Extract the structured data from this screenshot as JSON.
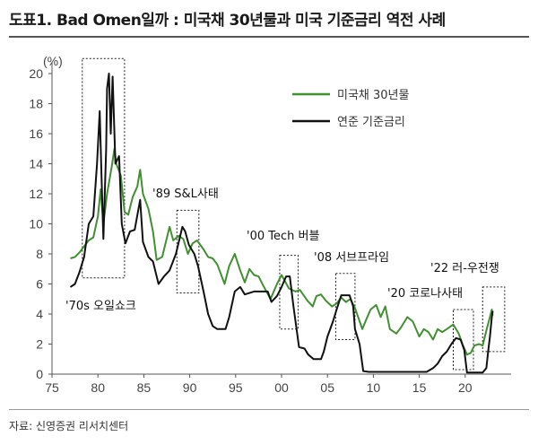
{
  "figure": {
    "title": "도표1. Bad Omen일까 : 미국채 30년물과 미국 기준금리 역전 사례",
    "source": "자료: 신영증권 리서치센터"
  },
  "chart_data": {
    "type": "line",
    "title": "도표1. Bad Omen일까 : 미국채 30년물과 미국 기준금리 역전 사례",
    "xlabel": "",
    "ylabel": "(%)",
    "y_unit": "(%)",
    "xlim": [
      1975,
      2025
    ],
    "ylim": [
      0,
      20
    ],
    "x_ticks": [
      {
        "v": 1975,
        "label": "75"
      },
      {
        "v": 1980,
        "label": "80"
      },
      {
        "v": 1985,
        "label": "85"
      },
      {
        "v": 1990,
        "label": "90"
      },
      {
        "v": 1995,
        "label": "95"
      },
      {
        "v": 2000,
        "label": "00"
      },
      {
        "v": 2005,
        "label": "05"
      },
      {
        "v": 2010,
        "label": "10"
      },
      {
        "v": 2015,
        "label": "15"
      },
      {
        "v": 2020,
        "label": "20"
      }
    ],
    "y_ticks": [
      0,
      2,
      4,
      6,
      8,
      10,
      12,
      14,
      16,
      18,
      20
    ],
    "grid": false,
    "legend_position": "top-right",
    "series": [
      {
        "name": "미국채 30년물",
        "color": "#3f9130",
        "points": [
          [
            1977.0,
            7.7
          ],
          [
            1977.5,
            7.8
          ],
          [
            1978.0,
            8.1
          ],
          [
            1978.5,
            8.5
          ],
          [
            1979.0,
            8.9
          ],
          [
            1979.5,
            9.1
          ],
          [
            1980.0,
            10.5
          ],
          [
            1980.3,
            12.3
          ],
          [
            1980.6,
            10.0
          ],
          [
            1981.0,
            12.0
          ],
          [
            1981.5,
            13.8
          ],
          [
            1981.8,
            15.0
          ],
          [
            1982.0,
            14.0
          ],
          [
            1982.5,
            13.2
          ],
          [
            1982.9,
            10.8
          ],
          [
            1983.3,
            10.6
          ],
          [
            1983.8,
            11.8
          ],
          [
            1984.3,
            12.5
          ],
          [
            1984.6,
            13.6
          ],
          [
            1984.9,
            12.0
          ],
          [
            1985.5,
            11.0
          ],
          [
            1986.0,
            9.5
          ],
          [
            1986.4,
            7.6
          ],
          [
            1987.0,
            7.8
          ],
          [
            1987.8,
            9.8
          ],
          [
            1988.2,
            8.9
          ],
          [
            1988.8,
            9.2
          ],
          [
            1989.3,
            9.0
          ],
          [
            1989.8,
            8.0
          ],
          [
            1990.3,
            8.7
          ],
          [
            1990.8,
            8.9
          ],
          [
            1991.5,
            8.3
          ],
          [
            1992.0,
            7.8
          ],
          [
            1992.5,
            7.7
          ],
          [
            1993.0,
            7.3
          ],
          [
            1993.8,
            6.0
          ],
          [
            1994.3,
            7.2
          ],
          [
            1994.9,
            8.0
          ],
          [
            1995.5,
            6.9
          ],
          [
            1996.0,
            6.1
          ],
          [
            1996.5,
            7.0
          ],
          [
            1997.0,
            6.6
          ],
          [
            1997.5,
            6.5
          ],
          [
            1998.0,
            5.9
          ],
          [
            1998.8,
            5.0
          ],
          [
            1999.5,
            6.0
          ],
          [
            2000.0,
            6.6
          ],
          [
            2000.8,
            5.7
          ],
          [
            2001.5,
            5.5
          ],
          [
            2002.0,
            5.6
          ],
          [
            2002.8,
            4.9
          ],
          [
            2003.4,
            4.5
          ],
          [
            2003.8,
            5.2
          ],
          [
            2004.3,
            5.3
          ],
          [
            2004.8,
            4.9
          ],
          [
            2005.5,
            4.5
          ],
          [
            2006.0,
            4.7
          ],
          [
            2006.5,
            5.1
          ],
          [
            2007.0,
            4.8
          ],
          [
            2007.5,
            5.0
          ],
          [
            2008.0,
            4.4
          ],
          [
            2008.8,
            3.0
          ],
          [
            2009.2,
            3.6
          ],
          [
            2009.7,
            4.3
          ],
          [
            2010.3,
            4.6
          ],
          [
            2010.8,
            3.8
          ],
          [
            2011.3,
            4.5
          ],
          [
            2011.8,
            3.0
          ],
          [
            2012.5,
            2.7
          ],
          [
            2013.0,
            3.1
          ],
          [
            2013.7,
            3.8
          ],
          [
            2014.3,
            3.5
          ],
          [
            2015.0,
            2.5
          ],
          [
            2015.5,
            3.0
          ],
          [
            2016.0,
            2.8
          ],
          [
            2016.5,
            2.3
          ],
          [
            2017.0,
            3.0
          ],
          [
            2017.5,
            2.8
          ],
          [
            2018.0,
            3.0
          ],
          [
            2018.7,
            3.3
          ],
          [
            2019.3,
            2.7
          ],
          [
            2019.7,
            2.0
          ],
          [
            2020.2,
            1.3
          ],
          [
            2020.6,
            1.4
          ],
          [
            2021.0,
            1.9
          ],
          [
            2021.5,
            2.0
          ],
          [
            2021.9,
            1.9
          ],
          [
            2022.3,
            2.9
          ],
          [
            2022.7,
            3.8
          ],
          [
            2022.9,
            4.3
          ],
          [
            2023.0,
            3.9
          ]
        ]
      },
      {
        "name": "연준 기준금리",
        "color": "#111111",
        "points": [
          [
            1977.0,
            5.8
          ],
          [
            1977.5,
            6.0
          ],
          [
            1978.0,
            6.8
          ],
          [
            1978.5,
            7.8
          ],
          [
            1979.0,
            10.0
          ],
          [
            1979.5,
            10.5
          ],
          [
            1979.9,
            14.0
          ],
          [
            1980.2,
            17.5
          ],
          [
            1980.4,
            13.0
          ],
          [
            1980.6,
            9.0
          ],
          [
            1980.9,
            15.0
          ],
          [
            1981.0,
            19.0
          ],
          [
            1981.2,
            20.0
          ],
          [
            1981.4,
            16.0
          ],
          [
            1981.6,
            19.8
          ],
          [
            1981.9,
            14.0
          ],
          [
            1982.3,
            14.5
          ],
          [
            1982.6,
            10.0
          ],
          [
            1983.0,
            8.7
          ],
          [
            1983.5,
            9.5
          ],
          [
            1984.0,
            9.6
          ],
          [
            1984.6,
            11.6
          ],
          [
            1984.9,
            8.8
          ],
          [
            1985.5,
            7.8
          ],
          [
            1986.0,
            7.5
          ],
          [
            1986.6,
            6.0
          ],
          [
            1987.2,
            6.5
          ],
          [
            1987.8,
            6.9
          ],
          [
            1988.5,
            8.0
          ],
          [
            1989.2,
            9.8
          ],
          [
            1989.5,
            9.5
          ],
          [
            1989.9,
            8.6
          ],
          [
            1990.5,
            8.0
          ],
          [
            1990.9,
            7.2
          ],
          [
            1991.5,
            5.5
          ],
          [
            1992.0,
            4.0
          ],
          [
            1992.5,
            3.2
          ],
          [
            1993.0,
            3.0
          ],
          [
            1993.9,
            3.0
          ],
          [
            1994.3,
            3.8
          ],
          [
            1994.9,
            5.5
          ],
          [
            1995.5,
            5.8
          ],
          [
            1996.0,
            5.3
          ],
          [
            1997.0,
            5.5
          ],
          [
            1998.5,
            5.5
          ],
          [
            1998.9,
            4.8
          ],
          [
            1999.5,
            5.2
          ],
          [
            2000.0,
            5.8
          ],
          [
            2000.5,
            6.5
          ],
          [
            2000.9,
            6.5
          ],
          [
            2001.3,
            4.5
          ],
          [
            2001.9,
            1.8
          ],
          [
            2002.5,
            1.7
          ],
          [
            2002.9,
            1.3
          ],
          [
            2003.5,
            1.0
          ],
          [
            2004.3,
            1.0
          ],
          [
            2004.6,
            1.5
          ],
          [
            2005.0,
            2.5
          ],
          [
            2005.6,
            3.5
          ],
          [
            2006.0,
            4.3
          ],
          [
            2006.5,
            5.25
          ],
          [
            2007.4,
            5.25
          ],
          [
            2007.8,
            4.5
          ],
          [
            2008.0,
            3.0
          ],
          [
            2008.5,
            2.0
          ],
          [
            2008.9,
            0.2
          ],
          [
            2009.5,
            0.15
          ],
          [
            2015.8,
            0.15
          ],
          [
            2016.5,
            0.4
          ],
          [
            2017.0,
            0.7
          ],
          [
            2017.5,
            1.2
          ],
          [
            2018.0,
            1.5
          ],
          [
            2018.5,
            2.0
          ],
          [
            2019.0,
            2.4
          ],
          [
            2019.5,
            2.3
          ],
          [
            2019.9,
            1.6
          ],
          [
            2020.2,
            0.1
          ],
          [
            2021.9,
            0.1
          ],
          [
            2022.3,
            0.4
          ],
          [
            2022.5,
            1.5
          ],
          [
            2022.7,
            2.5
          ],
          [
            2022.9,
            3.8
          ],
          [
            2023.0,
            4.2
          ]
        ]
      }
    ],
    "highlight_boxes": [
      {
        "x0": 1978.3,
        "x1": 1982.9,
        "y0": 6.4,
        "y1": 21.0
      },
      {
        "x0": 1988.6,
        "x1": 1991.0,
        "y0": 5.4,
        "y1": 10.9
      },
      {
        "x0": 1999.8,
        "x1": 2001.8,
        "y0": 3.0,
        "y1": 7.9
      },
      {
        "x0": 2005.9,
        "x1": 2008.0,
        "y0": 2.3,
        "y1": 6.7
      },
      {
        "x0": 2018.7,
        "x1": 2020.9,
        "y0": 0.3,
        "y1": 4.3
      },
      {
        "x0": 2021.9,
        "x1": 2024.3,
        "y0": 1.5,
        "y1": 5.8
      }
    ],
    "annotations": [
      {
        "text": "'70s 오일쇼크"
      },
      {
        "text": "'89 S&L사태"
      },
      {
        "text": "'00 Tech 버블"
      },
      {
        "text": "'08 서브프라임"
      },
      {
        "text": "'20 코로나사태"
      },
      {
        "text": "'22 러-우전쟁"
      }
    ]
  }
}
